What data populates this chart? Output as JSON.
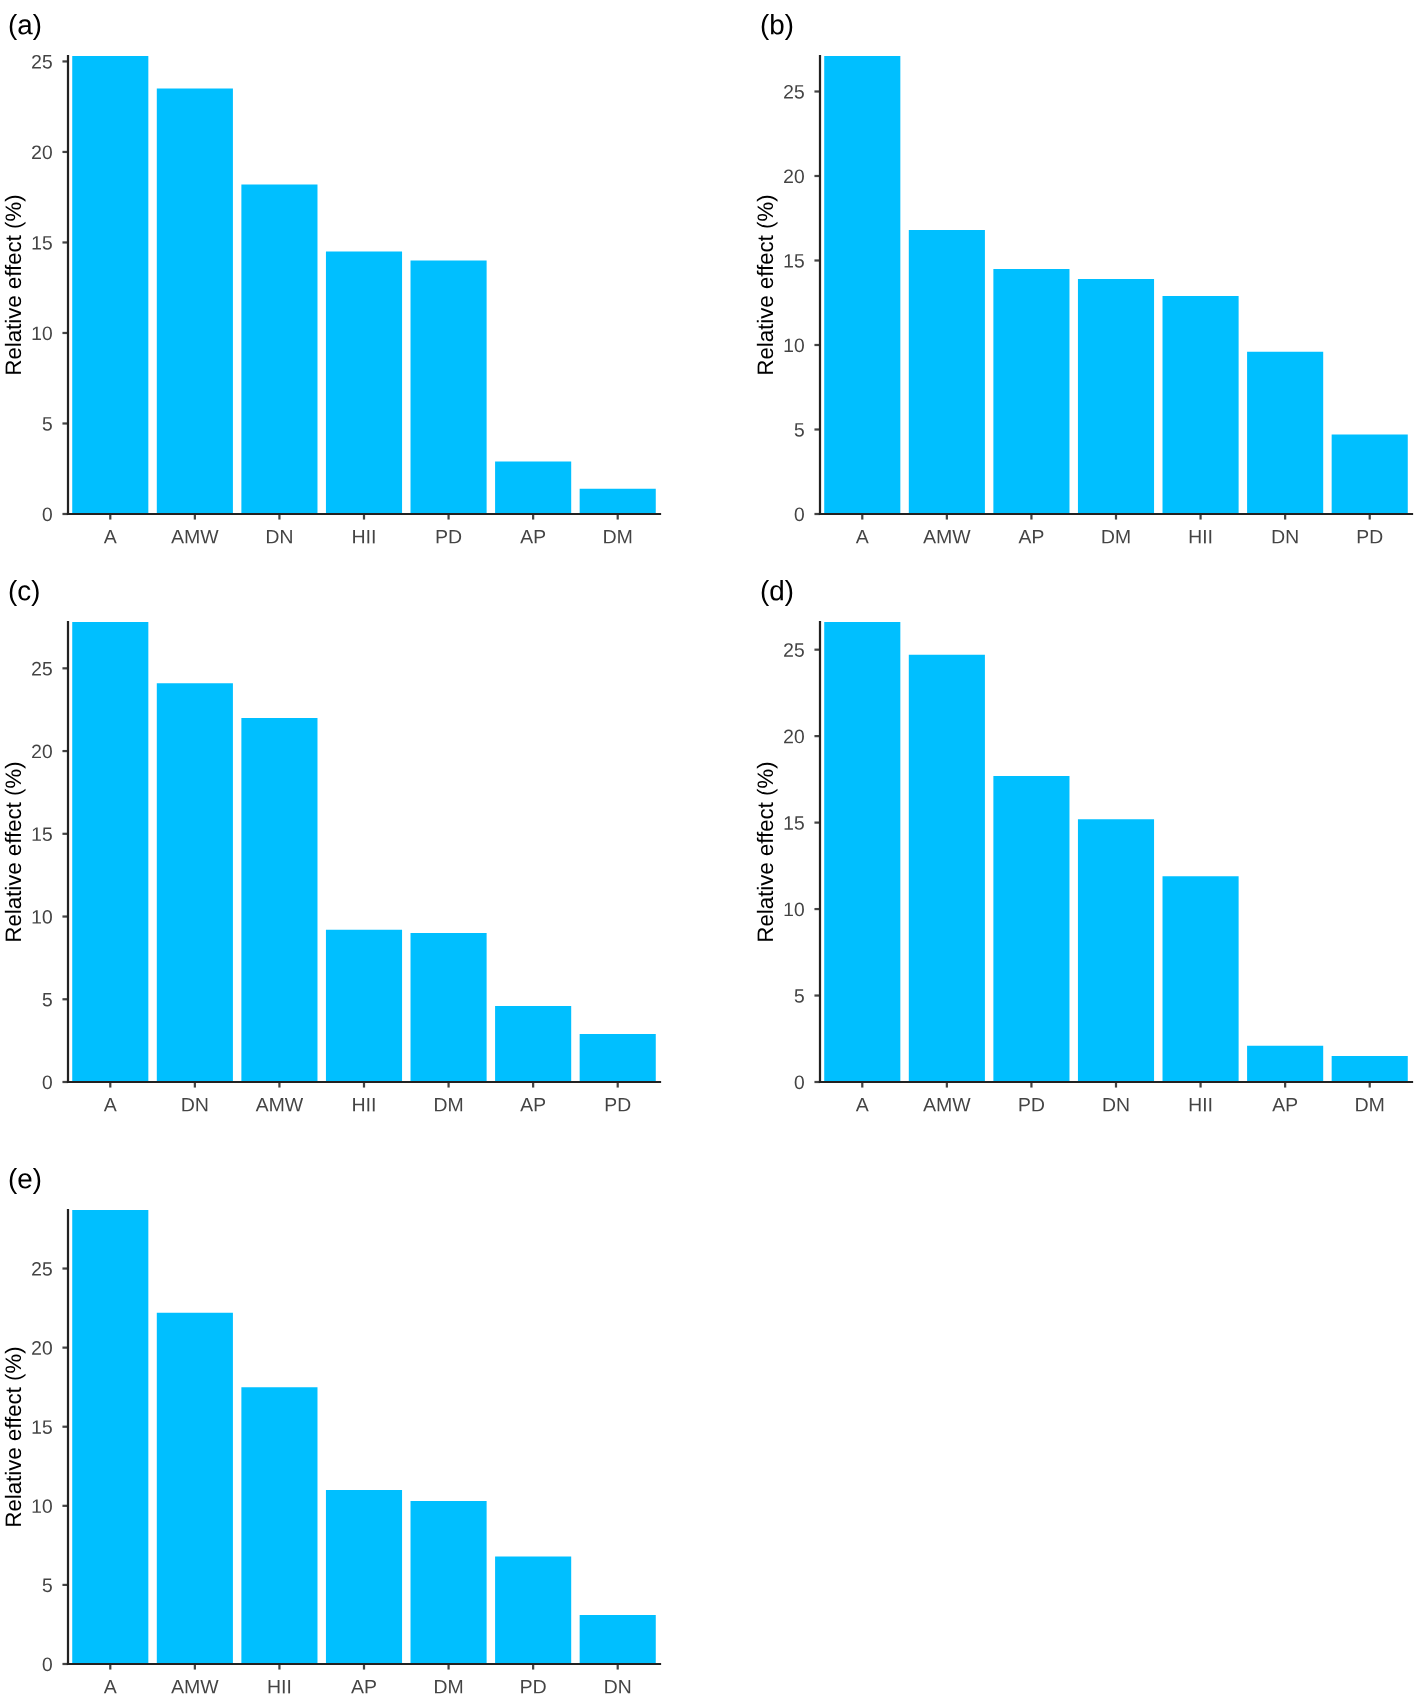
{
  "chart_data": [
    {
      "type": "bar",
      "title": "(a)",
      "ylabel": "Relative effect (%)",
      "categories": [
        "A",
        "AMW",
        "DN",
        "HII",
        "PD",
        "AP",
        "DM"
      ],
      "values": [
        25.3,
        23.5,
        18.2,
        14.5,
        14.0,
        2.9,
        1.4
      ],
      "color": "#00bfff",
      "ylim": [
        0,
        25.3
      ],
      "yticks": [
        0,
        5,
        10,
        15,
        20,
        25
      ],
      "grid": false
    },
    {
      "type": "bar",
      "title": "(b)",
      "ylabel": "Relative effect (%)",
      "categories": [
        "A",
        "AMW",
        "AP",
        "DM",
        "HII",
        "DN",
        "PD"
      ],
      "values": [
        27.1,
        16.8,
        14.5,
        13.9,
        12.9,
        9.6,
        4.7
      ],
      "color": "#00bfff",
      "ylim": [
        0,
        27.1
      ],
      "yticks": [
        0,
        5,
        10,
        15,
        20,
        25
      ],
      "grid": false
    },
    {
      "type": "bar",
      "title": "(c)",
      "ylabel": "Relative effect (%)",
      "categories": [
        "A",
        "DN",
        "AMW",
        "HII",
        "DM",
        "AP",
        "PD"
      ],
      "values": [
        27.8,
        24.1,
        22.0,
        9.2,
        9.0,
        4.6,
        2.9
      ],
      "color": "#00bfff",
      "ylim": [
        0,
        27.8
      ],
      "yticks": [
        0,
        5,
        10,
        15,
        20,
        25
      ],
      "grid": false
    },
    {
      "type": "bar",
      "title": "(d)",
      "ylabel": "Relative effect (%)",
      "categories": [
        "A",
        "AMW",
        "PD",
        "DN",
        "HII",
        "AP",
        "DM"
      ],
      "values": [
        26.6,
        24.7,
        17.7,
        15.2,
        11.9,
        2.1,
        1.5
      ],
      "color": "#00bfff",
      "ylim": [
        0,
        26.6
      ],
      "yticks": [
        0,
        5,
        10,
        15,
        20,
        25
      ],
      "grid": false
    },
    {
      "type": "bar",
      "title": "(e)",
      "ylabel": "Relative effect (%)",
      "categories": [
        "A",
        "AMW",
        "HII",
        "AP",
        "DM",
        "PD",
        "DN"
      ],
      "values": [
        28.7,
        22.2,
        17.5,
        11.0,
        10.3,
        6.8,
        3.1
      ],
      "color": "#00bfff",
      "ylim": [
        0,
        28.7
      ],
      "yticks": [
        0,
        5,
        10,
        15,
        20,
        25
      ],
      "grid": false
    }
  ]
}
